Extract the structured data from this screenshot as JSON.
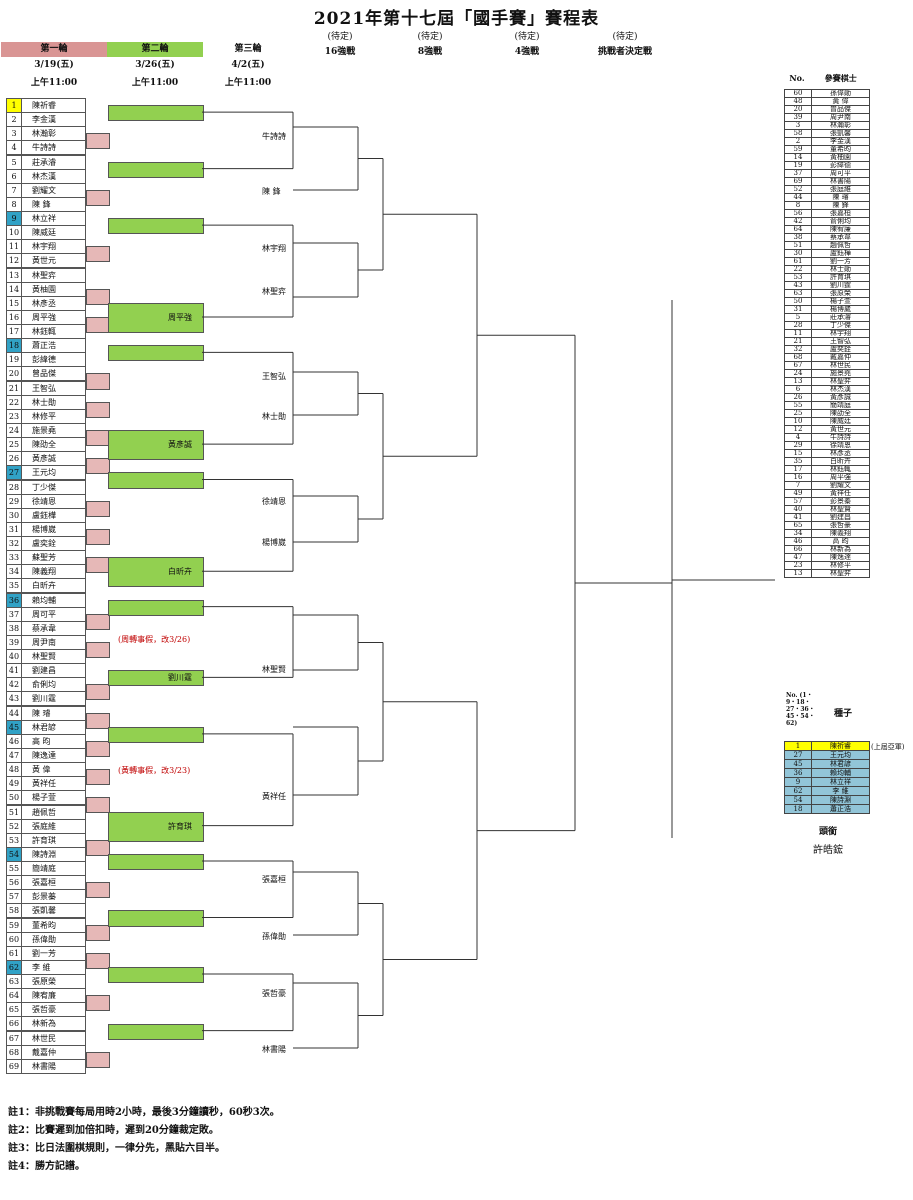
{
  "title": "2021年第十七屆「國手賽」賽程表",
  "rounds": [
    {
      "label": "第一輪",
      "date": "3/19(五)",
      "time": "上午11:00",
      "color": "#d99594"
    },
    {
      "label": "第二輪",
      "date": "3/26(五)",
      "time": "上午11:00",
      "color": "#92d050"
    },
    {
      "label": "第三輪",
      "date": "4/2(五)",
      "time": "上午11:00"
    }
  ],
  "stages": [
    {
      "tbd": "(待定)",
      "label": "16強戰"
    },
    {
      "tbd": "(待定)",
      "label": "8強戰"
    },
    {
      "tbd": "(待定)",
      "label": "4強戰"
    },
    {
      "tbd": "(待定)",
      "label": "挑戰者決定戰"
    }
  ],
  "players": [
    "陳祈睿",
    "李金漢",
    "林瀚彰",
    "牛詩詩",
    "莊承濬",
    "林杰漢",
    "劉耀文",
    "陳 鋒",
    "林立祥",
    "陳威廷",
    "林宇翔",
    "黃世元",
    "林聖弈",
    "黃柚園",
    "林彥丞",
    "周平強",
    "林鈺輒",
    "蕭正浩",
    "彭緯德",
    "曾品傑",
    "王智弘",
    "林士勛",
    "林修平",
    "施景堯",
    "陳劭全",
    "黃彥誠",
    "王元均",
    "丁少傑",
    "徐靖恩",
    "盧鈺樺",
    "楊博崴",
    "盧奕銓",
    "蘇聖芳",
    "陳義翔",
    "白昕卉",
    "賴均輔",
    "周可平",
    "蔡承韋",
    "周尹南",
    "林聖賢",
    "劉建昌",
    "俞俐均",
    "劉川霆",
    "陳 璿",
    "林君諺",
    "高 昀",
    "陳逸達",
    "黃 偉",
    "黃祥任",
    "楊子萱",
    "趙佩哲",
    "張庭維",
    "許育琪",
    "陳詩淵",
    "簡靖庭",
    "張嘉桓",
    "彭景蓁",
    "張凱馨",
    "董希昀",
    "孫偉勛",
    "劉一芳",
    "李 維",
    "張原榮",
    "陳宥廉",
    "張哲豪",
    "林新為",
    "林世民",
    "戴嘉仲",
    "林書陽"
  ],
  "r2_names": [
    {
      "pair": 8,
      "name": "周平強"
    },
    {
      "pair": 13,
      "name": "黃彥誠"
    },
    {
      "pair": 17,
      "name": "白昕卉"
    },
    {
      "pair": 22,
      "name": "劉川霆"
    },
    {
      "pair": 26,
      "name": "許育琪"
    }
  ],
  "r3_names": [
    "牛詩詩",
    "陳 鋒",
    "林宇翔",
    "林聖弈",
    "王智弘",
    "林士勛",
    "徐靖恩",
    "楊博崴",
    "林聖賢",
    "黃祥任",
    "張嘉桓",
    "孫偉勛",
    "張哲豪",
    "林書陽"
  ],
  "notes": [
    {
      "text": "(周轉事假，改3/26)"
    },
    {
      "text": "(黃轉事假，改3/23)"
    }
  ],
  "footnotes": [
    "註1：非挑戰賽每局用時2小時，最後3分鐘讀秒，60秒3次。",
    "註2：比賽遲到加倍扣時，遲到20分鐘裁定敗。",
    "註3：比日法圍棋規則，一律分先，黑貼六目半。",
    "註4：勝方記譜。"
  ],
  "list_header": {
    "no": "No.",
    "name": "參賽棋士"
  },
  "list": [
    [
      "60",
      "孫偉勛"
    ],
    [
      "48",
      "黃 偉"
    ],
    [
      "20",
      "曾品傑"
    ],
    [
      "39",
      "周尹南"
    ],
    [
      "3",
      "林瀚彰"
    ],
    [
      "58",
      "張凱馨"
    ],
    [
      "2",
      "李金漢"
    ],
    [
      "59",
      "董希昀"
    ],
    [
      "14",
      "黃柚園"
    ],
    [
      "19",
      "彭緯德"
    ],
    [
      "37",
      "周可平"
    ],
    [
      "69",
      "林書陽"
    ],
    [
      "52",
      "張庭維"
    ],
    [
      "44",
      "陳 璿"
    ],
    [
      "8",
      "陳 鋒"
    ],
    [
      "56",
      "張嘉桓"
    ],
    [
      "42",
      "俞俐均"
    ],
    [
      "64",
      "陳宥廉"
    ],
    [
      "38",
      "蔡承韋"
    ],
    [
      "51",
      "趙佩哲"
    ],
    [
      "30",
      "盧鈺樺"
    ],
    [
      "61",
      "劉一芳"
    ],
    [
      "22",
      "林士勛"
    ],
    [
      "53",
      "許育琪"
    ],
    [
      "43",
      "劉川霆"
    ],
    [
      "63",
      "張原榮"
    ],
    [
      "50",
      "楊子萱"
    ],
    [
      "31",
      "楊博崴"
    ],
    [
      "5",
      "莊承濬"
    ],
    [
      "28",
      "丁少傑"
    ],
    [
      "11",
      "林宇翔"
    ],
    [
      "21",
      "王智弘"
    ],
    [
      "32",
      "盧奕銓"
    ],
    [
      "68",
      "戴嘉仲"
    ],
    [
      "67",
      "林世民"
    ],
    [
      "24",
      "施景堯"
    ],
    [
      "13",
      "林聖弈"
    ],
    [
      "6",
      "林杰漢"
    ],
    [
      "26",
      "黃彥誠"
    ],
    [
      "55",
      "簡靖庭"
    ],
    [
      "25",
      "陳劭全"
    ],
    [
      "10",
      "陳威廷"
    ],
    [
      "12",
      "黃世元"
    ],
    [
      "4",
      "牛詩詩"
    ],
    [
      "29",
      "徐靖恩"
    ],
    [
      "15",
      "林彥丞"
    ],
    [
      "35",
      "白昕卉"
    ],
    [
      "17",
      "林鈺輒"
    ],
    [
      "16",
      "周平強"
    ],
    [
      "7",
      "劉耀文"
    ],
    [
      "49",
      "黃祥任"
    ],
    [
      "57",
      "彭景蓁"
    ],
    [
      "40",
      "林聖賢"
    ],
    [
      "41",
      "劉建昌"
    ],
    [
      "65",
      "張哲豪"
    ],
    [
      "34",
      "陳義翔"
    ],
    [
      "46",
      "高 昀"
    ],
    [
      "66",
      "林新為"
    ],
    [
      "47",
      "陳逸達"
    ],
    [
      "23",
      "林修平"
    ],
    [
      "13",
      "林聖弈"
    ]
  ],
  "seed_header": {
    "no": "No. (1・9・18・27・36・45・54・62)",
    "label": "種子"
  },
  "seeds": [
    [
      "1",
      "陳祈睿"
    ],
    [
      "27",
      "王元均"
    ],
    [
      "45",
      "林君諺"
    ],
    [
      "36",
      "賴均輔"
    ],
    [
      "9",
      "林立祥"
    ],
    [
      "62",
      "李 維"
    ],
    [
      "54",
      "陳詩淵"
    ],
    [
      "18",
      "蕭正浩"
    ]
  ],
  "seed_note": "(上屆亞軍)",
  "title_holder": {
    "label": "頭銜",
    "name": "許皓鋐"
  },
  "colors": {
    "green": "#92d050",
    "pink": "#e6b8b7",
    "yellow": "#ffff00",
    "blue": "#31a2c6"
  }
}
